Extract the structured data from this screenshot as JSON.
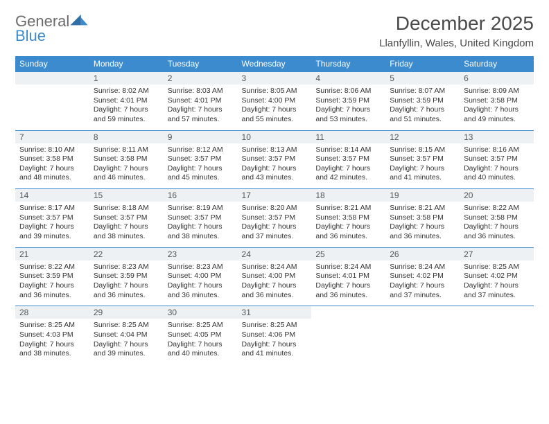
{
  "logo": {
    "line1": "General",
    "line2": "Blue",
    "general_color": "#6b6b6b",
    "blue_color": "#3b8bce"
  },
  "header": {
    "title": "December 2025",
    "location": "Llanfyllin, Wales, United Kingdom"
  },
  "styling": {
    "header_bg": "#3b8bce",
    "header_text": "#ffffff",
    "daynum_bg": "#eef1f3",
    "border_color": "#3b8bce",
    "body_text": "#333333",
    "title_color": "#4a4a4a",
    "font_family": "Arial",
    "title_fontsize": 28,
    "location_fontsize": 15,
    "dow_fontsize": 12,
    "cell_fontsize": 10.5
  },
  "dow": [
    "Sunday",
    "Monday",
    "Tuesday",
    "Wednesday",
    "Thursday",
    "Friday",
    "Saturday"
  ],
  "start_offset": 1,
  "days": [
    {
      "n": 1,
      "sr": "8:02 AM",
      "ss": "4:01 PM",
      "dl": "7 hours and 59 minutes."
    },
    {
      "n": 2,
      "sr": "8:03 AM",
      "ss": "4:01 PM",
      "dl": "7 hours and 57 minutes."
    },
    {
      "n": 3,
      "sr": "8:05 AM",
      "ss": "4:00 PM",
      "dl": "7 hours and 55 minutes."
    },
    {
      "n": 4,
      "sr": "8:06 AM",
      "ss": "3:59 PM",
      "dl": "7 hours and 53 minutes."
    },
    {
      "n": 5,
      "sr": "8:07 AM",
      "ss": "3:59 PM",
      "dl": "7 hours and 51 minutes."
    },
    {
      "n": 6,
      "sr": "8:09 AM",
      "ss": "3:58 PM",
      "dl": "7 hours and 49 minutes."
    },
    {
      "n": 7,
      "sr": "8:10 AM",
      "ss": "3:58 PM",
      "dl": "7 hours and 48 minutes."
    },
    {
      "n": 8,
      "sr": "8:11 AM",
      "ss": "3:58 PM",
      "dl": "7 hours and 46 minutes."
    },
    {
      "n": 9,
      "sr": "8:12 AM",
      "ss": "3:57 PM",
      "dl": "7 hours and 45 minutes."
    },
    {
      "n": 10,
      "sr": "8:13 AM",
      "ss": "3:57 PM",
      "dl": "7 hours and 43 minutes."
    },
    {
      "n": 11,
      "sr": "8:14 AM",
      "ss": "3:57 PM",
      "dl": "7 hours and 42 minutes."
    },
    {
      "n": 12,
      "sr": "8:15 AM",
      "ss": "3:57 PM",
      "dl": "7 hours and 41 minutes."
    },
    {
      "n": 13,
      "sr": "8:16 AM",
      "ss": "3:57 PM",
      "dl": "7 hours and 40 minutes."
    },
    {
      "n": 14,
      "sr": "8:17 AM",
      "ss": "3:57 PM",
      "dl": "7 hours and 39 minutes."
    },
    {
      "n": 15,
      "sr": "8:18 AM",
      "ss": "3:57 PM",
      "dl": "7 hours and 38 minutes."
    },
    {
      "n": 16,
      "sr": "8:19 AM",
      "ss": "3:57 PM",
      "dl": "7 hours and 38 minutes."
    },
    {
      "n": 17,
      "sr": "8:20 AM",
      "ss": "3:57 PM",
      "dl": "7 hours and 37 minutes."
    },
    {
      "n": 18,
      "sr": "8:21 AM",
      "ss": "3:58 PM",
      "dl": "7 hours and 36 minutes."
    },
    {
      "n": 19,
      "sr": "8:21 AM",
      "ss": "3:58 PM",
      "dl": "7 hours and 36 minutes."
    },
    {
      "n": 20,
      "sr": "8:22 AM",
      "ss": "3:58 PM",
      "dl": "7 hours and 36 minutes."
    },
    {
      "n": 21,
      "sr": "8:22 AM",
      "ss": "3:59 PM",
      "dl": "7 hours and 36 minutes."
    },
    {
      "n": 22,
      "sr": "8:23 AM",
      "ss": "3:59 PM",
      "dl": "7 hours and 36 minutes."
    },
    {
      "n": 23,
      "sr": "8:23 AM",
      "ss": "4:00 PM",
      "dl": "7 hours and 36 minutes."
    },
    {
      "n": 24,
      "sr": "8:24 AM",
      "ss": "4:00 PM",
      "dl": "7 hours and 36 minutes."
    },
    {
      "n": 25,
      "sr": "8:24 AM",
      "ss": "4:01 PM",
      "dl": "7 hours and 36 minutes."
    },
    {
      "n": 26,
      "sr": "8:24 AM",
      "ss": "4:02 PM",
      "dl": "7 hours and 37 minutes."
    },
    {
      "n": 27,
      "sr": "8:25 AM",
      "ss": "4:02 PM",
      "dl": "7 hours and 37 minutes."
    },
    {
      "n": 28,
      "sr": "8:25 AM",
      "ss": "4:03 PM",
      "dl": "7 hours and 38 minutes."
    },
    {
      "n": 29,
      "sr": "8:25 AM",
      "ss": "4:04 PM",
      "dl": "7 hours and 39 minutes."
    },
    {
      "n": 30,
      "sr": "8:25 AM",
      "ss": "4:05 PM",
      "dl": "7 hours and 40 minutes."
    },
    {
      "n": 31,
      "sr": "8:25 AM",
      "ss": "4:06 PM",
      "dl": "7 hours and 41 minutes."
    }
  ],
  "labels": {
    "sunrise": "Sunrise:",
    "sunset": "Sunset:",
    "daylight": "Daylight:"
  }
}
